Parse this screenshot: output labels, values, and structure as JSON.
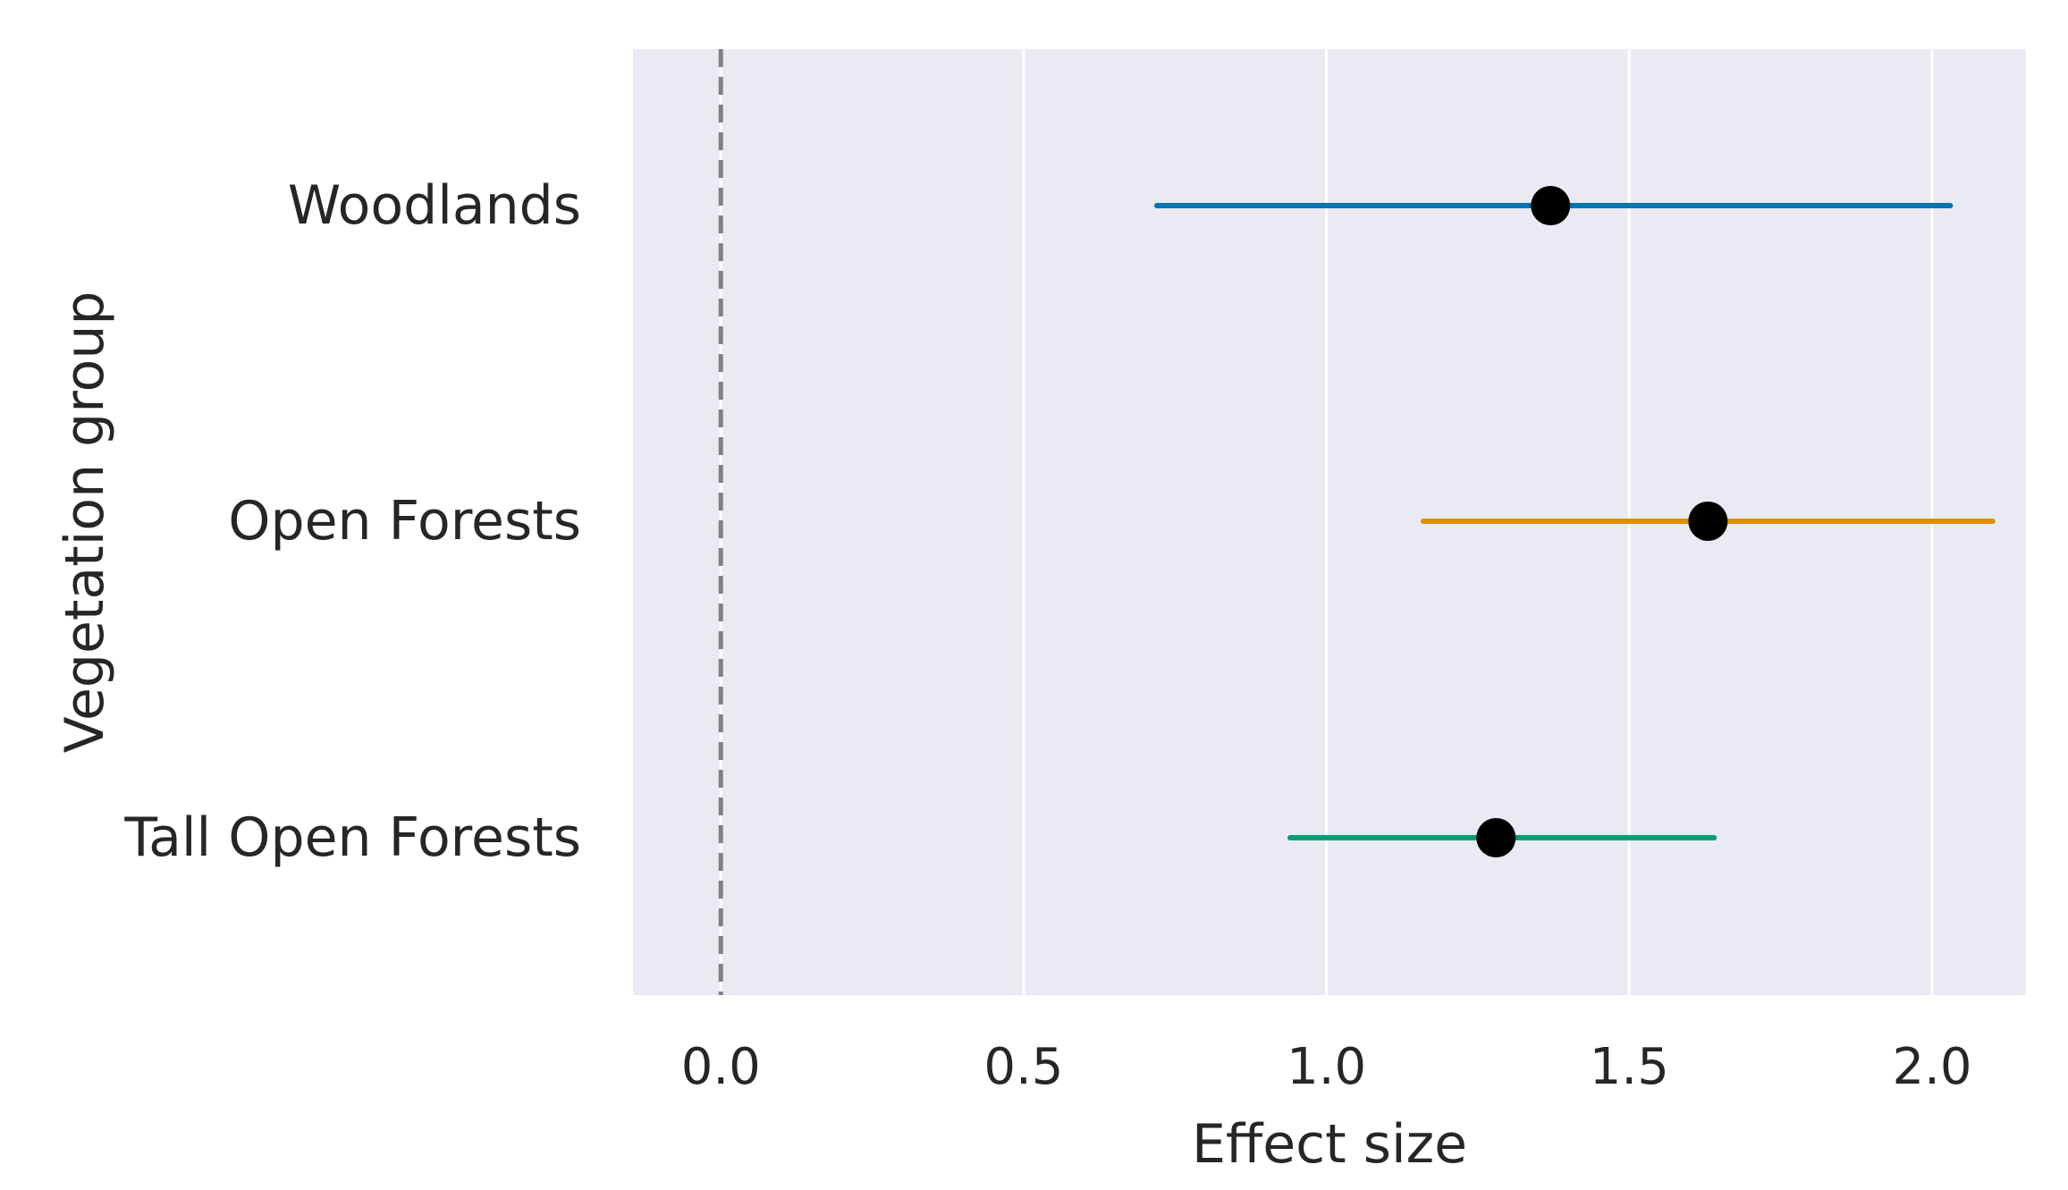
{
  "chart_data": {
    "type": "scatter",
    "subtype": "forest-plot",
    "title": "",
    "xlabel": "Effect size",
    "ylabel": "Vegetation group",
    "xlim": [
      -0.145,
      2.155
    ],
    "x_ticks": [
      0.0,
      0.5,
      1.0,
      1.5,
      2.0
    ],
    "x_tick_labels": [
      "0.0",
      "0.5",
      "1.0",
      "1.5",
      "2.0"
    ],
    "grid": "vertical",
    "reference_line": {
      "x": 0.0,
      "style": "dashed",
      "color": "#808080"
    },
    "background": "#eaeaf2",
    "point_color": "#000000",
    "groups": [
      {
        "label": "Woodlands",
        "estimate": 1.37,
        "ci_low": 0.72,
        "ci_high": 2.03,
        "color": "#0173b2"
      },
      {
        "label": "Open Forests",
        "estimate": 1.63,
        "ci_low": 1.16,
        "ci_high": 2.1,
        "color": "#de8f05"
      },
      {
        "label": "Tall Open Forests",
        "estimate": 1.28,
        "ci_low": 0.94,
        "ci_high": 1.64,
        "color": "#029e73"
      }
    ]
  }
}
